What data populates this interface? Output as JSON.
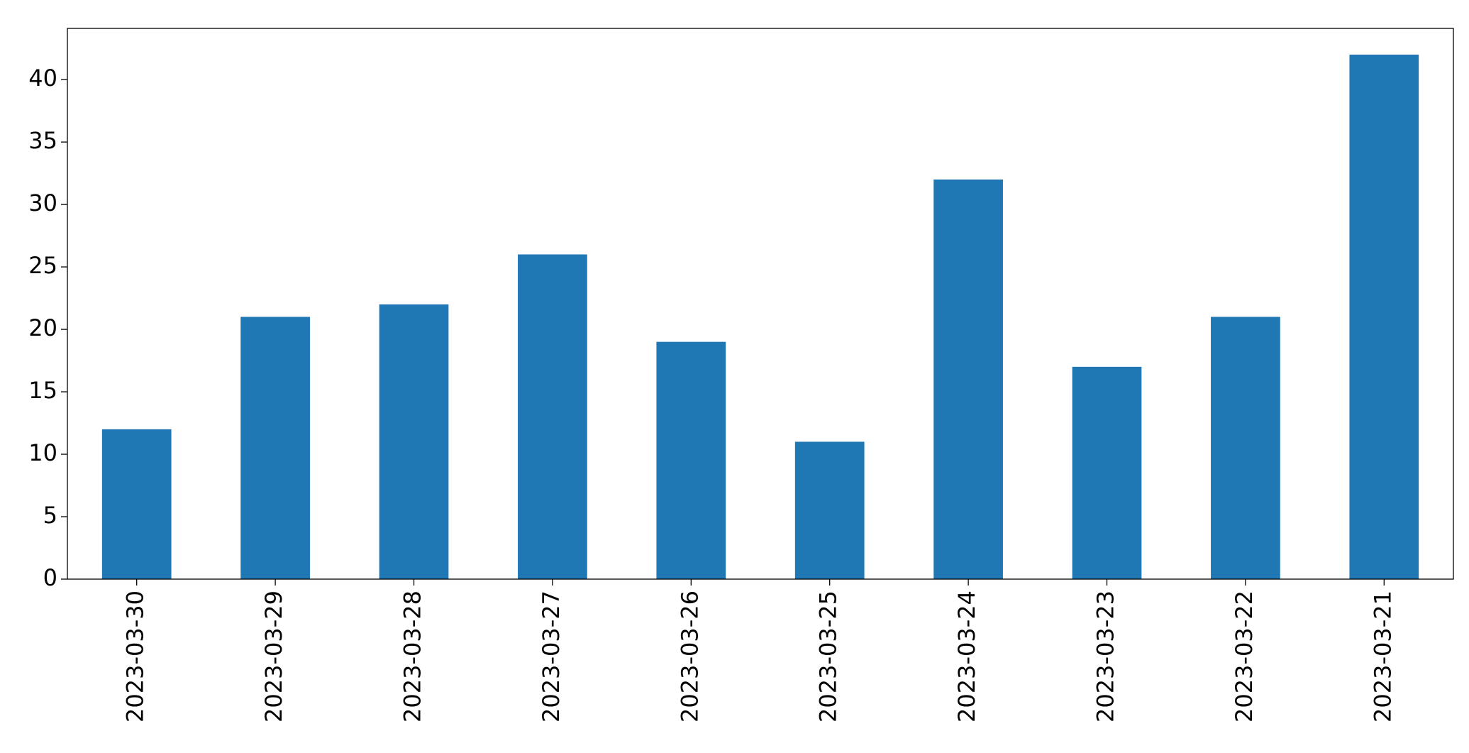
{
  "chart_data": {
    "type": "bar",
    "categories": [
      "2023-03-30",
      "2023-03-29",
      "2023-03-28",
      "2023-03-27",
      "2023-03-26",
      "2023-03-25",
      "2023-03-24",
      "2023-03-23",
      "2023-03-22",
      "2023-03-21"
    ],
    "values": [
      12,
      21,
      22,
      26,
      19,
      11,
      32,
      17,
      21,
      42
    ],
    "color": "#1f77b4",
    "ylim": [
      0,
      44.1
    ],
    "yticks": [
      0,
      5,
      10,
      15,
      20,
      25,
      30,
      35,
      40
    ],
    "grid": false
  }
}
